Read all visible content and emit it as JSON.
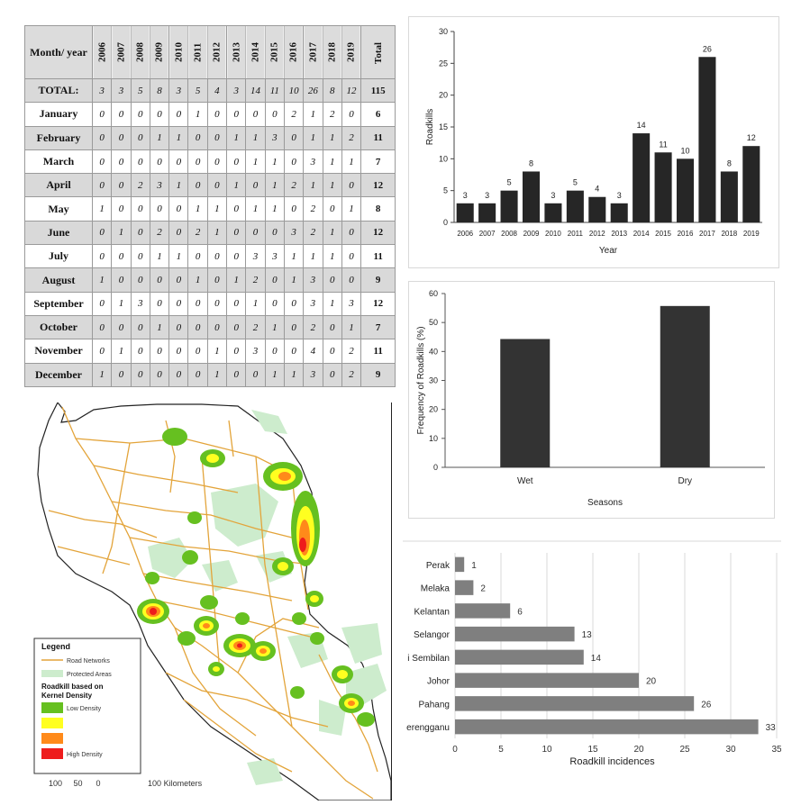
{
  "table": {
    "month_header": "Month/ year",
    "years": [
      "2006",
      "2007",
      "2008",
      "2009",
      "2010",
      "2011",
      "2012",
      "2013",
      "2014",
      "2015",
      "2016",
      "2017",
      "2018",
      "2019"
    ],
    "total_header": "Total",
    "rows": [
      {
        "label": "TOTAL:",
        "values": [
          3,
          3,
          5,
          8,
          3,
          5,
          4,
          3,
          14,
          11,
          10,
          26,
          8,
          12
        ],
        "total": 115
      },
      {
        "label": "January",
        "values": [
          0,
          0,
          0,
          0,
          0,
          1,
          0,
          0,
          0,
          0,
          2,
          1,
          2,
          0
        ],
        "total": 6
      },
      {
        "label": "February",
        "values": [
          0,
          0,
          0,
          1,
          1,
          0,
          0,
          1,
          1,
          3,
          0,
          1,
          1,
          2
        ],
        "total": 11
      },
      {
        "label": "March",
        "values": [
          0,
          0,
          0,
          0,
          0,
          0,
          0,
          0,
          1,
          1,
          0,
          3,
          1,
          1
        ],
        "total": 7
      },
      {
        "label": "April",
        "values": [
          0,
          0,
          2,
          3,
          1,
          0,
          0,
          1,
          0,
          1,
          2,
          1,
          1,
          0
        ],
        "total": 12
      },
      {
        "label": "May",
        "values": [
          1,
          0,
          0,
          0,
          0,
          1,
          1,
          0,
          1,
          1,
          0,
          2,
          0,
          1
        ],
        "total": 8
      },
      {
        "label": "June",
        "values": [
          0,
          1,
          0,
          2,
          0,
          2,
          1,
          0,
          0,
          0,
          3,
          2,
          1,
          0
        ],
        "total": 12
      },
      {
        "label": "July",
        "values": [
          0,
          0,
          0,
          1,
          1,
          0,
          0,
          0,
          3,
          3,
          1,
          1,
          1,
          0
        ],
        "total": 11
      },
      {
        "label": "August",
        "values": [
          1,
          0,
          0,
          0,
          0,
          1,
          0,
          1,
          2,
          0,
          1,
          3,
          0,
          0
        ],
        "total": 9
      },
      {
        "label": "September",
        "values": [
          0,
          1,
          3,
          0,
          0,
          0,
          0,
          0,
          1,
          0,
          0,
          3,
          1,
          3
        ],
        "total": 12
      },
      {
        "label": "October",
        "values": [
          0,
          0,
          0,
          1,
          0,
          0,
          0,
          0,
          2,
          1,
          0,
          2,
          0,
          1
        ],
        "total": 7
      },
      {
        "label": "November",
        "values": [
          0,
          1,
          0,
          0,
          0,
          0,
          1,
          0,
          3,
          0,
          0,
          4,
          0,
          2
        ],
        "total": 11
      },
      {
        "label": "December",
        "values": [
          1,
          0,
          0,
          0,
          0,
          0,
          1,
          0,
          0,
          1,
          1,
          3,
          0,
          2
        ],
        "total": 9
      }
    ]
  },
  "chart_data": [
    {
      "type": "bar",
      "categories": [
        "2006",
        "2007",
        "2008",
        "2009",
        "2010",
        "2011",
        "2012",
        "2013",
        "2014",
        "2015",
        "2016",
        "2017",
        "2018",
        "2019"
      ],
      "values": [
        3,
        3,
        5,
        8,
        3,
        5,
        4,
        3,
        14,
        11,
        10,
        26,
        8,
        12
      ],
      "xlabel": "Year",
      "ylabel": "Roadkills",
      "ylim": [
        0,
        30
      ],
      "yticks": [
        0,
        5,
        10,
        15,
        20,
        25,
        30
      ],
      "grid": false,
      "data_labels": true,
      "bar_color": "#262626"
    },
    {
      "type": "bar",
      "categories": [
        "Wet",
        "Dry"
      ],
      "values": [
        44.3,
        55.7
      ],
      "xlabel": "Seasons",
      "ylabel": "Frequency of Roadkills (%)",
      "ylim": [
        0,
        60
      ],
      "yticks": [
        0,
        10,
        20,
        30,
        40,
        50,
        60
      ],
      "grid": false,
      "data_labels": false,
      "bar_color": "#333333"
    },
    {
      "type": "bar",
      "orientation": "horizontal",
      "categories": [
        "Perak",
        "Melaka",
        "Kelantan",
        "Selangor",
        "Negeri Sembilan",
        "Johor",
        "Pahang",
        "Terengganu"
      ],
      "visible_category_labels": [
        "Perak",
        "Melaka",
        "Kelantan",
        "Selangor",
        "i Sembilan",
        "Johor",
        "Pahang",
        "erengganu"
      ],
      "values": [
        1,
        2,
        6,
        13,
        14,
        20,
        26,
        33
      ],
      "xlabel": "Roadkill incidences",
      "xlim": [
        0,
        35
      ],
      "xticks": [
        0,
        5,
        10,
        15,
        20,
        25,
        30,
        35
      ],
      "grid": true,
      "data_labels": true,
      "bar_color": "#7f7f7f"
    }
  ],
  "map": {
    "legend_title": "Legend",
    "road_label": "Road Networks",
    "protected_label": "Protected Areas",
    "density_title": "Roadkill based on Kernel Density",
    "low_label": "Low Density",
    "high_label": "High Density",
    "scale_text": "100     50      0                     100 Kilometers",
    "colors": {
      "road": "#e3a43a",
      "protected": "#cdeccd",
      "low": "#66c020",
      "mid_low": "#ffff20",
      "mid_high": "#ff8a1a",
      "high": "#ee1c1c"
    }
  }
}
